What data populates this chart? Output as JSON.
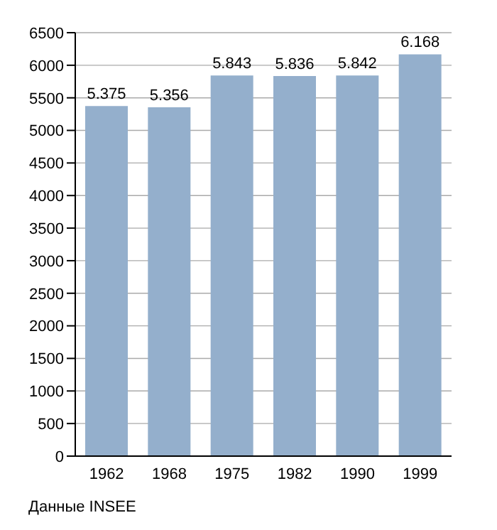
{
  "chart_data": {
    "type": "bar",
    "categories": [
      "1962",
      "1968",
      "1975",
      "1982",
      "1990",
      "1999"
    ],
    "values": [
      5375,
      5356,
      5843,
      5836,
      5842,
      6168
    ],
    "value_labels": [
      "5.375",
      "5.356",
      "5.843",
      "5.836",
      "5.842",
      "6.168"
    ],
    "color": "#94afcc",
    "ylim": [
      0,
      6500
    ],
    "yticks": [
      0,
      500,
      1000,
      1500,
      2000,
      2500,
      3000,
      3500,
      4000,
      4500,
      5000,
      5500,
      6000,
      6500
    ],
    "grid": "y",
    "legend": false,
    "annotations": [
      "Данные INSEE"
    ]
  }
}
